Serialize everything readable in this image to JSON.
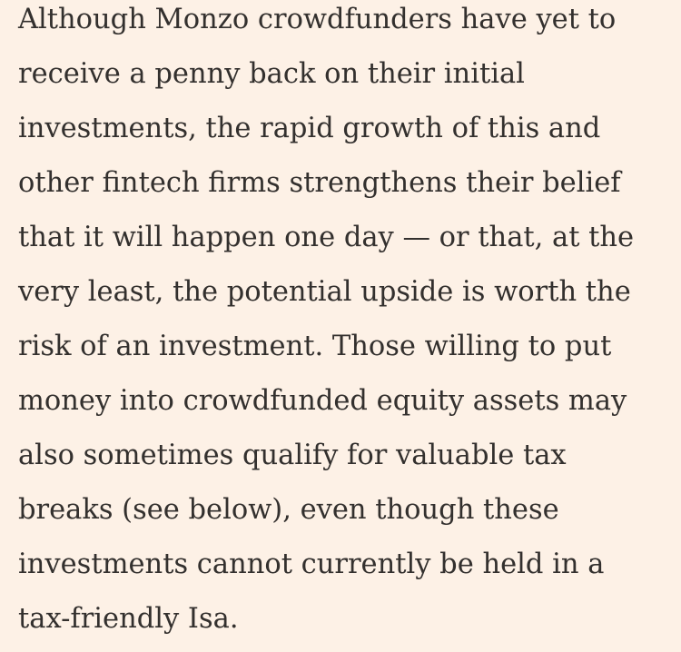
{
  "article": {
    "lines": [
      "Although Monzo crowdfunders have yet to",
      "receive a penny back on their initial",
      "investments, the rapid growth of this and",
      "other fintech firms strengthens their belief",
      "that it will happen one day — or that, at the",
      "very least, the potential upside is worth the",
      "risk of an investment. Those willing to put",
      "money into crowdfunded equity assets may",
      "also sometimes qualify for valuable tax",
      "breaks (see below), even though these",
      "investments cannot currently be held in a",
      "tax-friendly Isa."
    ]
  }
}
